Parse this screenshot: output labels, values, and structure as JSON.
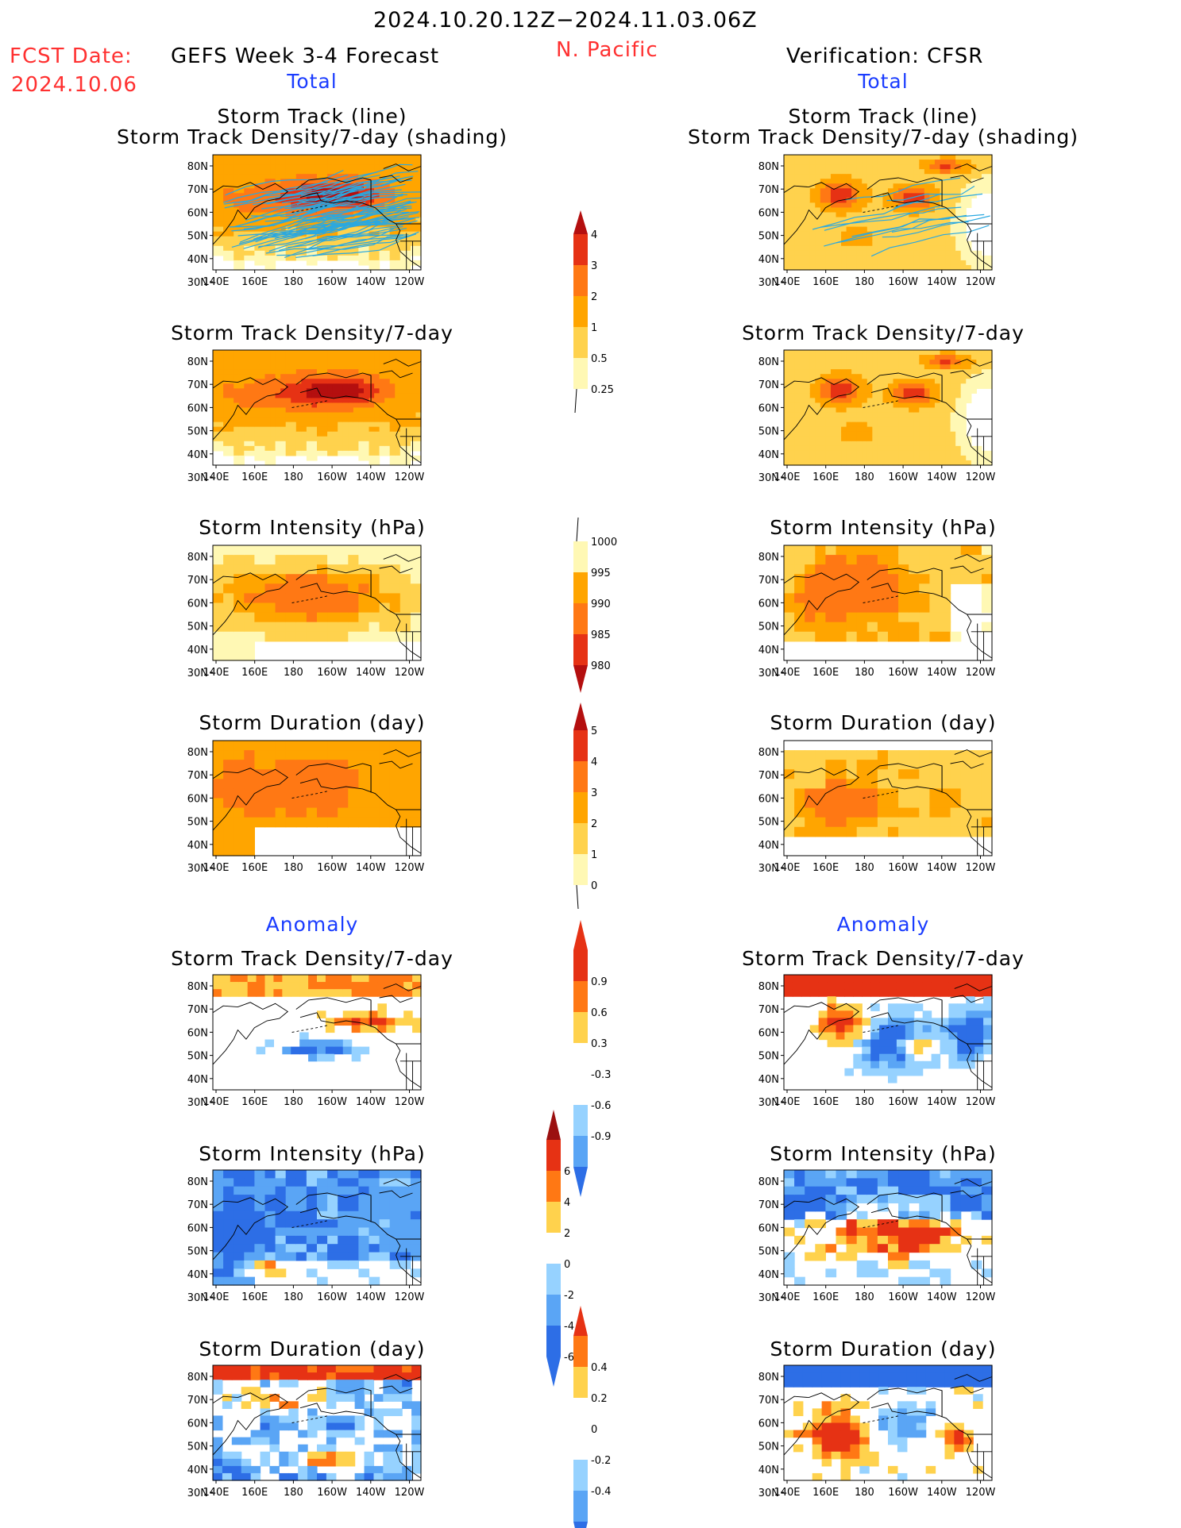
{
  "header": {
    "period": "2024.10.20.12Z−2024.11.03.06Z",
    "fcst_label": "FCST Date:",
    "fcst_date": "2024.10.06",
    "forecast_title": "GEFS Week 3-4 Forecast",
    "region": "N. Pacific",
    "verification_title": "Verification: CFSR",
    "left_section": "Total",
    "right_section": "Total",
    "anomaly_left": "Anomaly",
    "anomaly_right": "Anomaly"
  },
  "panel_titles": {
    "track_line": "Storm Track (line)",
    "track_density_shading": "Storm Track Density/7-day (shading)",
    "track_density": "Storm Track Density/7-day",
    "intensity": "Storm Intensity (hPa)",
    "duration": "Storm Duration (day)"
  },
  "axes": {
    "lat_ticks": [
      "80N",
      "70N",
      "60N",
      "50N",
      "40N",
      "30N"
    ],
    "lon_ticks": [
      "140E",
      "160E",
      "180",
      "160W",
      "140W",
      "120W"
    ]
  },
  "colorbars": {
    "density": [
      "0.25",
      "0.5",
      "1",
      "2",
      "3",
      "4"
    ],
    "intensity": [
      "1000",
      "995",
      "990",
      "985",
      "980"
    ],
    "duration": [
      "0",
      "1",
      "2",
      "3",
      "4",
      "5"
    ],
    "density_anom": [
      "-0.9",
      "-0.6",
      "-0.3",
      "0.3",
      "0.6",
      "0.9"
    ],
    "intensity_anom": [
      "-6",
      "-4",
      "-2",
      "0",
      "2",
      "4",
      "6"
    ],
    "duration_anom": [
      "-0.4",
      "-0.2",
      "0",
      "0.2",
      "0.4"
    ]
  },
  "colors": {
    "warm": [
      "#fff8b4",
      "#ffd24d",
      "#ffa500",
      "#ff7814",
      "#e63214",
      "#b40f0f"
    ],
    "cool": [
      "#c8f0ff",
      "#96d2ff",
      "#5aa5f5",
      "#2d6ee6",
      "#1450c8"
    ],
    "track_line": "#2aa8e0",
    "title_red": "#ff3030",
    "section_blue": "#1a3cff"
  },
  "chart_data": [
    {
      "type": "heatmap",
      "title": "Storm Track (line) / Storm Track Density/7-day (shading)",
      "column": "GEFS Week 3-4 Forecast",
      "note": "density shading with storm track lines"
    },
    {
      "type": "heatmap",
      "title": "Storm Track Density/7-day",
      "column": "GEFS Week 3-4 Forecast"
    },
    {
      "type": "heatmap",
      "title": "Storm Intensity (hPa)",
      "column": "GEFS Week 3-4 Forecast"
    },
    {
      "type": "heatmap",
      "title": "Storm Duration (day)",
      "column": "GEFS Week 3-4 Forecast"
    },
    {
      "type": "heatmap",
      "title": "Storm Track Density/7-day",
      "column": "GEFS Week 3-4 Forecast",
      "section": "Anomaly"
    },
    {
      "type": "heatmap",
      "title": "Storm Intensity (hPa)",
      "column": "GEFS Week 3-4 Forecast",
      "section": "Anomaly"
    },
    {
      "type": "heatmap",
      "title": "Storm Duration (day)",
      "column": "GEFS Week 3-4 Forecast",
      "section": "Anomaly"
    },
    {
      "type": "heatmap",
      "title": "Storm Track (line) / Storm Track Density/7-day (shading)",
      "column": "Verification: CFSR"
    },
    {
      "type": "heatmap",
      "title": "Storm Track Density/7-day",
      "column": "Verification: CFSR"
    },
    {
      "type": "heatmap",
      "title": "Storm Intensity (hPa)",
      "column": "Verification: CFSR"
    },
    {
      "type": "heatmap",
      "title": "Storm Duration (day)",
      "column": "Verification: CFSR"
    },
    {
      "type": "heatmap",
      "title": "Storm Track Density/7-day",
      "column": "Verification: CFSR",
      "section": "Anomaly"
    },
    {
      "type": "heatmap",
      "title": "Storm Intensity (hPa)",
      "column": "Verification: CFSR",
      "section": "Anomaly"
    },
    {
      "type": "heatmap",
      "title": "Storm Duration (day)",
      "column": "Verification: CFSR",
      "section": "Anomaly"
    }
  ]
}
